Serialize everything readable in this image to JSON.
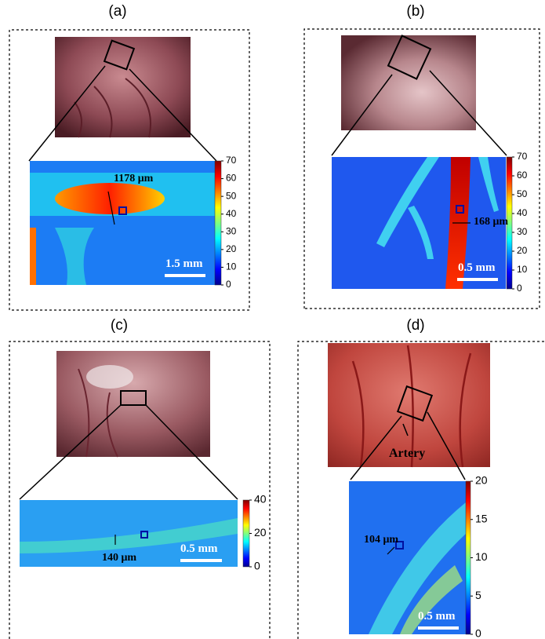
{
  "panels": [
    {
      "label": "(a)",
      "colorbar_ticks": [
        0,
        10,
        20,
        30,
        40,
        50,
        60,
        70
      ],
      "measurement": "1178 μm",
      "scale_bar": "1.5 mm"
    },
    {
      "label": "(b)",
      "colorbar_ticks": [
        0,
        10,
        20,
        30,
        40,
        50,
        60,
        70
      ],
      "measurement": "168 μm",
      "scale_bar": "0.5 mm"
    },
    {
      "label": "(c)",
      "colorbar_ticks": [
        0,
        20,
        40
      ],
      "measurement": "140 μm",
      "scale_bar": "0.5 mm"
    },
    {
      "label": "(d)",
      "colorbar_ticks": [
        0,
        5,
        10,
        15,
        20
      ],
      "measurement": "104 μm",
      "scale_bar": "0.5 mm",
      "annotation": "Artery"
    }
  ]
}
